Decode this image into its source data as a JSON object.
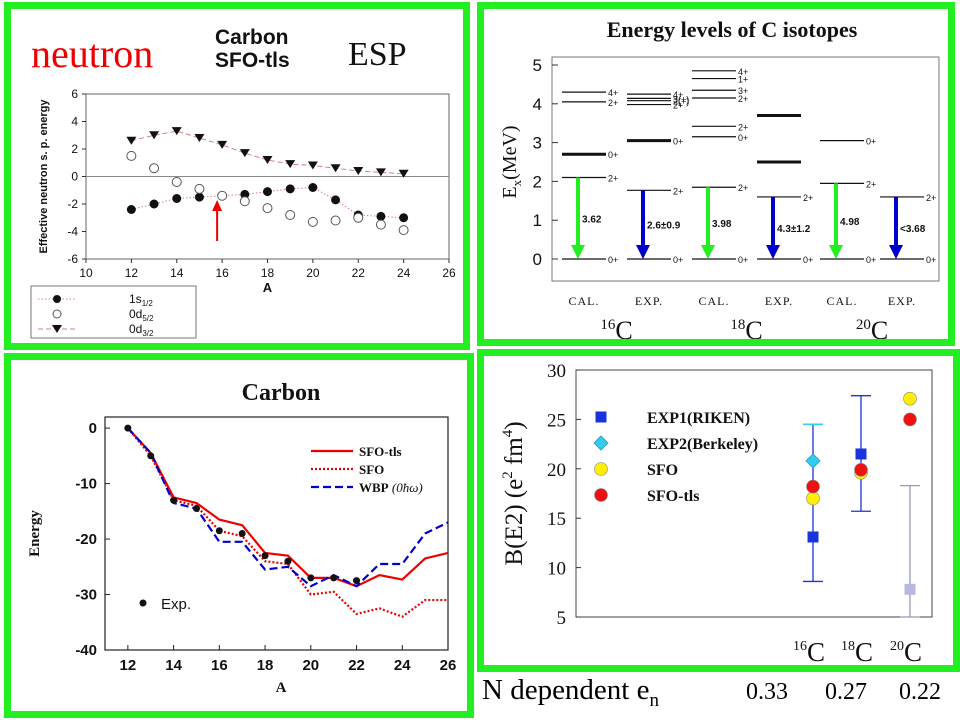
{
  "chart_data": [
    {
      "id": "esp",
      "type": "line",
      "header": {
        "neutron": "neutron",
        "carbon": "Carbon",
        "sfo": "SFO-tls",
        "esp": "ESP"
      },
      "ylabel": "Effective neutron s. p. energy",
      "xlabel": "A",
      "xlim": [
        10,
        26
      ],
      "ylim": [
        -6,
        6
      ],
      "xticks": [
        "10",
        "12",
        "14",
        "16",
        "18",
        "20",
        "22",
        "24",
        "26"
      ],
      "yticks": [
        "-6",
        "-4",
        "-2",
        "0",
        "2",
        "4",
        "6"
      ],
      "series": [
        {
          "name": "1s1/2",
          "name_main": "1s",
          "name_sub": "1/2",
          "marker": "filled-circle",
          "line": "dotted",
          "x": [
            12,
            13,
            14,
            15,
            16,
            17,
            18,
            19,
            20,
            21,
            22,
            23,
            24
          ],
          "values": [
            -2.4,
            -2.0,
            -1.6,
            -1.5,
            -1.4,
            -1.3,
            -1.1,
            -0.9,
            -0.8,
            -1.7,
            -2.8,
            -2.9,
            -3.0
          ]
        },
        {
          "name": "0d5/2",
          "name_main": "0d",
          "name_sub": "5/2",
          "marker": "open-circle",
          "line": "none",
          "x": [
            12,
            13,
            14,
            15,
            16,
            17,
            18,
            19,
            20,
            21,
            22,
            23,
            24
          ],
          "values": [
            1.5,
            0.6,
            -0.4,
            -0.9,
            -1.4,
            -1.8,
            -2.3,
            -2.8,
            -3.3,
            -3.2,
            -3.0,
            -3.5,
            -3.9
          ]
        },
        {
          "name": "0d3/2",
          "name_main": "0d",
          "name_sub": "3/2",
          "marker": "filled-triangle-down",
          "line": "dashed",
          "x": [
            12,
            13,
            14,
            15,
            16,
            17,
            18,
            19,
            20,
            21,
            22,
            23,
            24
          ],
          "values": [
            2.6,
            3.0,
            3.3,
            2.8,
            2.3,
            1.7,
            1.2,
            0.9,
            0.8,
            0.6,
            0.4,
            0.3,
            0.2
          ]
        }
      ],
      "annotation": {
        "type": "arrow",
        "color": "#ee0000",
        "x": 16
      }
    },
    {
      "id": "levels",
      "type": "level-scheme",
      "title": "Energy levels of C isotopes",
      "ylabel_main": "E",
      "ylabel_sub": "x",
      "ylabel_unit": "(MeV)",
      "ylim": [
        0,
        5
      ],
      "yticks": [
        "0",
        "1",
        "2",
        "3",
        "4",
        "5"
      ],
      "columns": [
        "CAL.",
        "EXP.",
        "CAL.",
        "EXP.",
        "CAL.",
        "EXP."
      ],
      "isotopes": [
        {
          "mass": "16",
          "symbol": "C"
        },
        {
          "mass": "18",
          "symbol": "C"
        },
        {
          "mass": "20",
          "symbol": "C"
        }
      ],
      "levels": [
        {
          "col": 0,
          "e": 0,
          "j": "0+"
        },
        {
          "col": 0,
          "e": 2.1,
          "j": "2+"
        },
        {
          "col": 0,
          "e": 2.7,
          "j": "0+",
          "bold": true
        },
        {
          "col": 0,
          "e": 4.05,
          "j": "2+"
        },
        {
          "col": 0,
          "e": 4.3,
          "j": "4+"
        },
        {
          "col": 1,
          "e": 0,
          "j": "0+"
        },
        {
          "col": 1,
          "e": 1.77,
          "j": "2+"
        },
        {
          "col": 1,
          "e": 3.05,
          "j": "0+",
          "bold": true
        },
        {
          "col": 1,
          "e": 3.98,
          "j": "2+"
        },
        {
          "col": 1,
          "e": 4.08,
          "j": "2(+)"
        },
        {
          "col": 1,
          "e": 4.14,
          "j": "3(+)"
        },
        {
          "col": 1,
          "e": 4.25,
          "j": "4+"
        },
        {
          "col": 2,
          "e": 0,
          "j": "0+"
        },
        {
          "col": 2,
          "e": 1.85,
          "j": "2+"
        },
        {
          "col": 2,
          "e": 3.15,
          "j": "0+"
        },
        {
          "col": 2,
          "e": 3.42,
          "j": "2+"
        },
        {
          "col": 2,
          "e": 4.15,
          "j": "2+"
        },
        {
          "col": 2,
          "e": 4.35,
          "j": "3+"
        },
        {
          "col": 2,
          "e": 4.65,
          "j": "1+"
        },
        {
          "col": 2,
          "e": 4.85,
          "j": "4+"
        },
        {
          "col": 3,
          "e": 0,
          "j": "0+"
        },
        {
          "col": 3,
          "e": 1.6,
          "j": "2+"
        },
        {
          "col": 3,
          "e": 2.5,
          "j": "",
          "bold": true
        },
        {
          "col": 3,
          "e": 3.7,
          "j": "",
          "bold": true
        },
        {
          "col": 4,
          "e": 0,
          "j": "0+"
        },
        {
          "col": 4,
          "e": 1.95,
          "j": "2+"
        },
        {
          "col": 4,
          "e": 3.05,
          "j": "0+"
        },
        {
          "col": 5,
          "e": 0,
          "j": "0+"
        },
        {
          "col": 5,
          "e": 1.6,
          "j": "2+"
        }
      ],
      "transitions": [
        {
          "col": 0,
          "from": 2.1,
          "to": 0,
          "label": "3.62",
          "color": "#22ee22"
        },
        {
          "col": 1,
          "from": 1.77,
          "to": 0,
          "label": "2.6±0.9",
          "color": "#0000cc"
        },
        {
          "col": 2,
          "from": 1.85,
          "to": 0,
          "label": "3.98",
          "color": "#22ee22"
        },
        {
          "col": 3,
          "from": 1.6,
          "to": 0,
          "label": "4.3±1.2",
          "color": "#0000cc"
        },
        {
          "col": 4,
          "from": 1.95,
          "to": 0,
          "label": "4.98",
          "color": "#22ee22"
        },
        {
          "col": 5,
          "from": 1.6,
          "to": 0,
          "label": "<3.68",
          "color": "#0000cc"
        }
      ]
    },
    {
      "id": "energy",
      "type": "line",
      "title": "Carbon",
      "xlabel": "A",
      "ylabel": "Energy",
      "xlim": [
        11,
        26
      ],
      "ylim": [
        -40,
        2
      ],
      "xticks": [
        "12",
        "14",
        "16",
        "18",
        "20",
        "22",
        "24",
        "26"
      ],
      "yticks": [
        "0",
        "-10",
        "-20",
        "-30",
        "-40"
      ],
      "series": [
        {
          "name": "SFO-tls",
          "color": "#ee0000",
          "style": "solid",
          "x": [
            12,
            13,
            14,
            15,
            16,
            17,
            18,
            19,
            20,
            21,
            22,
            23,
            24,
            25,
            26
          ],
          "values": [
            0,
            -4.5,
            -12.5,
            -13.5,
            -16.5,
            -17.5,
            -22.5,
            -23,
            -27,
            -27,
            -28.5,
            -26.5,
            -27.3,
            -23.5,
            -22.5
          ]
        },
        {
          "name": "SFO",
          "color": "#ee0000",
          "style": "dotted",
          "x": [
            12,
            13,
            14,
            15,
            16,
            17,
            18,
            19,
            20,
            21,
            22,
            23,
            24,
            25,
            26
          ],
          "values": [
            0,
            -5,
            -13,
            -14,
            -18.5,
            -19.5,
            -24,
            -24.5,
            -30,
            -29.5,
            -33.5,
            -32.5,
            -34,
            -31,
            -31
          ]
        },
        {
          "name": "WBP",
          "name_suffix": "(0ħω)",
          "color": "#0000cc",
          "style": "dashed",
          "x": [
            12,
            13,
            14,
            15,
            16,
            17,
            18,
            19,
            20,
            21,
            22,
            23,
            24,
            25,
            26
          ],
          "values": [
            0,
            -4.5,
            -13.5,
            -14.5,
            -20.5,
            -20.5,
            -25.5,
            -25,
            -28.5,
            -26.5,
            -28.5,
            -24.5,
            -24.5,
            -19,
            -17
          ]
        },
        {
          "name": "Exp.",
          "color": "#000000",
          "style": "points",
          "x": [
            12,
            13,
            14,
            15,
            16,
            17,
            18,
            19,
            20,
            21,
            22
          ],
          "values": [
            0,
            -5,
            -13,
            -14.5,
            -18.5,
            -19,
            -23,
            -24,
            -27,
            -27,
            -27.5
          ]
        }
      ]
    },
    {
      "id": "be2",
      "type": "scatter",
      "ylabel": "B(E2)  (e2 fm4)",
      "ylabel_parts": {
        "a": "B(E2)  (e",
        "b": "2",
        "c": " fm",
        "d": "4",
        "e": ")"
      },
      "ylim": [
        5,
        30
      ],
      "yticks": [
        "5",
        "10",
        "15",
        "20",
        "25",
        "30"
      ],
      "categories": [
        {
          "mass": "16",
          "symbol": "C"
        },
        {
          "mass": "18",
          "symbol": "C"
        },
        {
          "mass": "20",
          "symbol": "C"
        }
      ],
      "series": [
        {
          "name": "EXP1(RIKEN)",
          "marker": "square",
          "color": "#1a33dd",
          "points": [
            {
              "cat": 0,
              "y": 13.1,
              "err": [
                8.6,
                24.5
              ]
            },
            {
              "cat": 1,
              "y": 21.5,
              "err": [
                15.7,
                27.4
              ]
            },
            {
              "cat": 2,
              "y": 7.8,
              "err": [
                5,
                18.3
              ],
              "faded": true
            }
          ]
        },
        {
          "name": "EXP2(Berkeley)",
          "marker": "diamond",
          "color": "#33ccee",
          "points": [
            {
              "cat": 0,
              "y": 20.8,
              "err": [
                8.6,
                24.5
              ]
            }
          ]
        },
        {
          "name": "SFO",
          "marker": "circle",
          "color": "#ffee00",
          "points": [
            {
              "cat": 0,
              "y": 17.0
            },
            {
              "cat": 1,
              "y": 19.6
            },
            {
              "cat": 2,
              "y": 27.1
            }
          ]
        },
        {
          "name": "SFO-tls",
          "marker": "circle",
          "color": "#ee1111",
          "points": [
            {
              "cat": 0,
              "y": 18.2
            },
            {
              "cat": 1,
              "y": 19.9
            },
            {
              "cat": 2,
              "y": 25.0
            }
          ]
        }
      ]
    }
  ],
  "footer": {
    "label_main": "N dependent e",
    "label_sub": "n",
    "values": [
      "0.33",
      "0.27",
      "0.22"
    ]
  }
}
